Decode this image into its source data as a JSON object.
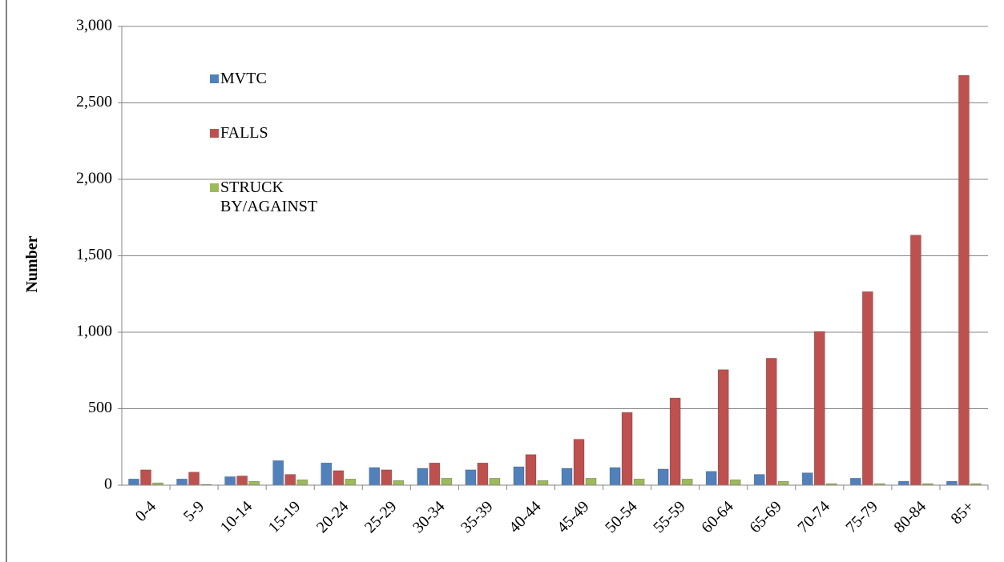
{
  "chart_data": {
    "type": "bar",
    "y_label": "Number",
    "categories": [
      "0-4",
      "5-9",
      "10-14",
      "15-19",
      "20-24",
      "25-29",
      "30-34",
      "35-39",
      "40-44",
      "45-49",
      "50-54",
      "55-59",
      "60-64",
      "65-69",
      "70-74",
      "75-79",
      "80-84",
      "85+"
    ],
    "series": [
      {
        "name": "MVTC",
        "color": "#4f81bd",
        "values": [
          40,
          40,
          55,
          160,
          145,
          115,
          110,
          100,
          120,
          110,
          115,
          105,
          90,
          70,
          80,
          45,
          25,
          25
        ]
      },
      {
        "name": "FALLS",
        "color": "#c0504d",
        "values": [
          100,
          85,
          60,
          70,
          95,
          100,
          145,
          145,
          200,
          300,
          475,
          570,
          755,
          830,
          1005,
          1265,
          1635,
          2680
        ]
      },
      {
        "name": "STRUCK BY/AGAINST",
        "color": "#9bbb59",
        "values": [
          15,
          5,
          25,
          35,
          40,
          30,
          45,
          45,
          30,
          45,
          40,
          40,
          35,
          25,
          10,
          10,
          10,
          10
        ]
      }
    ],
    "ylim": [
      0,
      3000
    ],
    "yticks": [
      {
        "value": 0,
        "label": "0"
      },
      {
        "value": 500,
        "label": "500"
      },
      {
        "value": 1000,
        "label": "1,000"
      },
      {
        "value": 1500,
        "label": "1,500"
      },
      {
        "value": 2000,
        "label": "2,000"
      },
      {
        "value": 2500,
        "label": "2,500"
      },
      {
        "value": 3000,
        "label": "3,000"
      }
    ],
    "grid": true
  }
}
